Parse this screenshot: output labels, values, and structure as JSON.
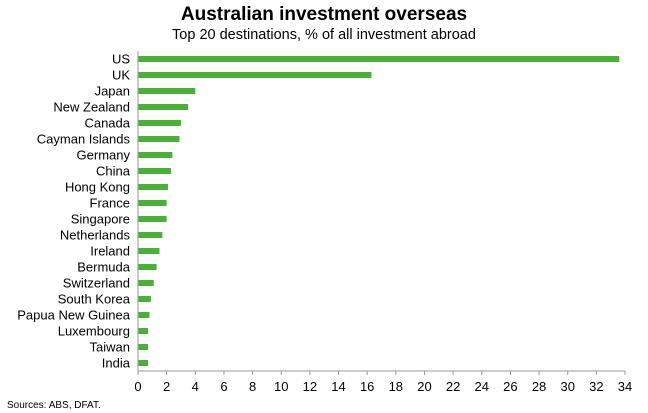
{
  "chart_data": {
    "type": "bar",
    "orientation": "horizontal",
    "title": "Australian investment overseas",
    "subtitle": "Top 20 destinations, % of all investment abroad",
    "categories": [
      "US",
      "UK",
      "Japan",
      "New Zealand",
      "Canada",
      "Cayman Islands",
      "Germany",
      "China",
      "Hong Kong",
      "France",
      "Singapore",
      "Netherlands",
      "Ireland",
      "Bermuda",
      "Switzerland",
      "South Korea",
      "Papua New Guinea",
      "Luxembourg",
      "Taiwan",
      "India"
    ],
    "values": [
      33.6,
      16.3,
      4.0,
      3.5,
      3.0,
      2.9,
      2.4,
      2.3,
      2.1,
      2.0,
      2.0,
      1.7,
      1.5,
      1.3,
      1.1,
      0.9,
      0.8,
      0.7,
      0.7,
      0.7
    ],
    "xlim": [
      0,
      34
    ],
    "xticks": [
      "0",
      "2",
      "4",
      "6",
      "8",
      "10",
      "12",
      "14",
      "16",
      "18",
      "20",
      "22",
      "24",
      "26",
      "28",
      "30",
      "32",
      "34"
    ],
    "xlabel": "",
    "ylabel": "",
    "grid": false,
    "legend": "none",
    "bar_color": "#4daf3a",
    "source": "Sources: ABS, DFAT."
  }
}
